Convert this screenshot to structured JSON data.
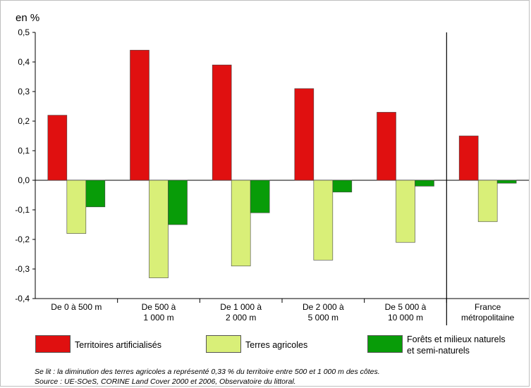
{
  "chart_data": {
    "type": "bar",
    "ylabel": "en %",
    "ylim": [
      -0.4,
      0.5
    ],
    "yticks": [
      "0,5",
      "0,4",
      "0,3",
      "0,2",
      "0,1",
      "0,0",
      "-0,1",
      "-0,2",
      "-0,3",
      "-0,4"
    ],
    "categories": [
      [
        "De 0 à 500 m"
      ],
      [
        "De 500 à",
        "1 000 m"
      ],
      [
        "De 1 000 à",
        "2 000 m"
      ],
      [
        "De 2 000 à",
        "5 000 m"
      ],
      [
        "De 5 000 à",
        "10 000 m"
      ],
      [
        "France",
        "métropolitaine"
      ]
    ],
    "series": [
      {
        "name": "Territoires artificialisés",
        "color": "#e01010",
        "values": [
          0.22,
          0.44,
          0.39,
          0.31,
          0.23,
          0.15
        ]
      },
      {
        "name": "Terres agricoles",
        "color": "#d9ef78",
        "values": [
          -0.18,
          -0.33,
          -0.29,
          -0.27,
          -0.21,
          -0.14
        ]
      },
      {
        "name": "Forêts et milieux naturels et semi-naturels",
        "color": "#089c08",
        "values": [
          -0.09,
          -0.15,
          -0.11,
          -0.04,
          -0.02,
          -0.01
        ]
      }
    ],
    "legend": {
      "placement": "bottom",
      "labels": [
        [
          "Territoires artificialisés"
        ],
        [
          "Terres agricoles"
        ],
        [
          "Forêts et milieux naturels",
          "et semi-naturels"
        ]
      ]
    },
    "separator_after_category": 5
  },
  "notes": {
    "reading": "Se lit : la diminution des terres agricoles a représenté 0,33 % du territoire entre 500 et 1 000 m des côtes.",
    "source": "Source : UE-SOeS, CORINE Land Cover 2000 et 2006, Observatoire du littoral."
  }
}
